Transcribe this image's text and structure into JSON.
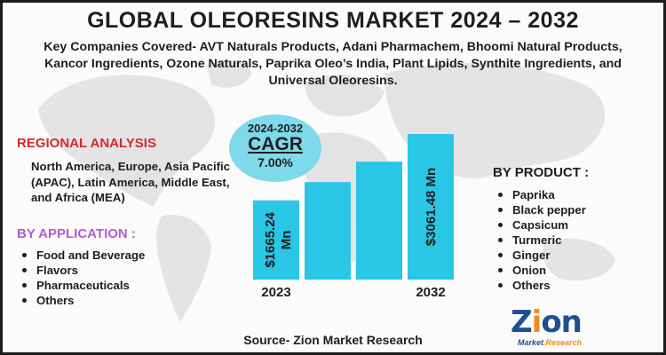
{
  "title": "GLOBAL OLEORESINS MARKET 2024 – 2032",
  "companies": "Key Companies Covered- AVT Naturals Products, Adani Pharmachem, Bhoomi Natural Products, Kancor Ingredients, Ozone Naturals, Paprika Oleo’s India, Plant Lipids, Synthite Ingredients, and Universal Oleoresins.",
  "regional": {
    "title": "REGIONAL ANALYSIS",
    "text": "North America, Europe, Asia Pacific (APAC), Latin America, Middle East, and Africa (MEA)"
  },
  "application": {
    "title": "BY APPLICATION :",
    "items": [
      "Food and Beverage",
      "Flavors",
      "Pharmaceuticals",
      "Others"
    ]
  },
  "product": {
    "title": "BY PRODUCT :",
    "items": [
      "Paprika",
      "Black pepper",
      "Capsicum",
      "Turmeric",
      "Ginger",
      "Onion",
      "Others"
    ]
  },
  "cagr": {
    "period": "2024-2032",
    "label": "CAGR",
    "value": "7.00%"
  },
  "source": "Source- Zion Market Research",
  "logo": {
    "word_z": "Z",
    "word_i": "i",
    "word_on": "on",
    "sub_market": "Market",
    "sub_research": ".Research"
  },
  "colors": {
    "bar": "#29c6e6",
    "regional_title": "#d42a2a",
    "application_title": "#b55ad8",
    "cagr_circle": "#7ed9ea",
    "map": "#d9d9d9"
  },
  "chart_data": {
    "type": "bar",
    "categories": [
      "2023",
      "",
      "",
      "2032"
    ],
    "values": [
      1665.24,
      2050,
      2480,
      3061.48
    ],
    "data_labels": [
      "$1665.24 Mn",
      "",
      "",
      "$3061.48 Mn"
    ],
    "category_labels": [
      "2023",
      "",
      "",
      "2032"
    ],
    "unit": "USD Mn",
    "ylim": [
      0,
      3061.48
    ],
    "grid": false,
    "legend": "none"
  }
}
